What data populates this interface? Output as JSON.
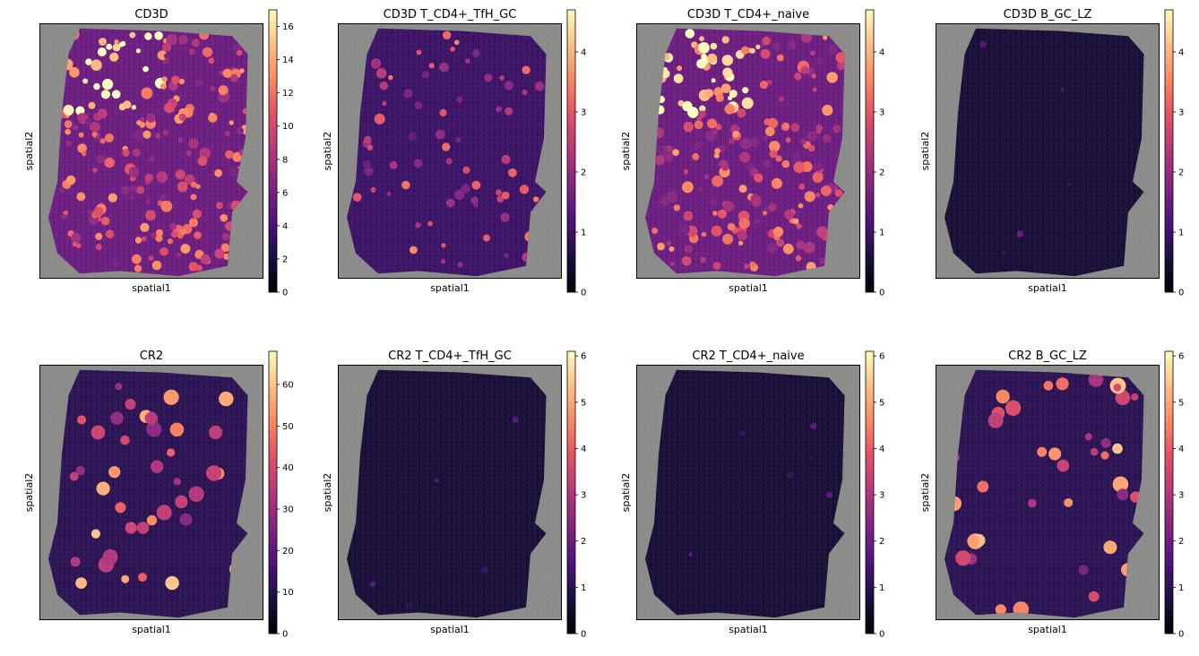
{
  "figure": {
    "colormap": "magma",
    "background_tissue_color": "#8a8a88",
    "frame_color": "#000000"
  },
  "chart_data": [
    {
      "type": "heatmap",
      "title": "CD3D",
      "xlabel": "spatial1",
      "ylabel": "spatial2",
      "colorbar": {
        "range": [
          0,
          17
        ],
        "ticks": [
          "0",
          "2",
          "4",
          "6",
          "8",
          "10",
          "12",
          "14",
          "16"
        ]
      },
      "pattern": "broad_high"
    },
    {
      "type": "heatmap",
      "title": "CD3D T_CD4+_TfH_GC",
      "xlabel": "spatial1",
      "ylabel": "spatial2",
      "colorbar": {
        "range": [
          0,
          4.7
        ],
        "ticks": [
          "0",
          "1",
          "2",
          "3",
          "4"
        ]
      },
      "pattern": "sparse_medium"
    },
    {
      "type": "heatmap",
      "title": "CD3D T_CD4+_naive",
      "xlabel": "spatial1",
      "ylabel": "spatial2",
      "colorbar": {
        "range": [
          0,
          4.7
        ],
        "ticks": [
          "0",
          "1",
          "2",
          "3",
          "4"
        ]
      },
      "pattern": "broad_high"
    },
    {
      "type": "heatmap",
      "title": "CD3D B_GC_LZ",
      "xlabel": "spatial1",
      "ylabel": "spatial2",
      "colorbar": {
        "range": [
          0,
          4.7
        ],
        "ticks": [
          "0",
          "1",
          "2",
          "3",
          "4"
        ]
      },
      "pattern": "near_zero"
    },
    {
      "type": "heatmap",
      "title": "CR2",
      "xlabel": "spatial1",
      "ylabel": "spatial2",
      "colorbar": {
        "range": [
          0,
          68
        ],
        "ticks": [
          "0",
          "10",
          "20",
          "30",
          "40",
          "50",
          "60"
        ]
      },
      "pattern": "follicles"
    },
    {
      "type": "heatmap",
      "title": "CR2 T_CD4+_TfH_GC",
      "xlabel": "spatial1",
      "ylabel": "spatial2",
      "colorbar": {
        "range": [
          0,
          6.1
        ],
        "ticks": [
          "0",
          "1",
          "2",
          "3",
          "4",
          "5",
          "6"
        ]
      },
      "pattern": "near_zero"
    },
    {
      "type": "heatmap",
      "title": "CR2 T_CD4+_naive",
      "xlabel": "spatial1",
      "ylabel": "spatial2",
      "colorbar": {
        "range": [
          0,
          6.1
        ],
        "ticks": [
          "0",
          "1",
          "2",
          "3",
          "4",
          "5",
          "6"
        ]
      },
      "pattern": "near_zero"
    },
    {
      "type": "heatmap",
      "title": "CR2 B_GC_LZ",
      "xlabel": "spatial1",
      "ylabel": "spatial2",
      "colorbar": {
        "range": [
          0,
          6.1
        ],
        "ticks": [
          "0",
          "1",
          "2",
          "3",
          "4",
          "5",
          "6"
        ]
      },
      "pattern": "follicles"
    }
  ]
}
